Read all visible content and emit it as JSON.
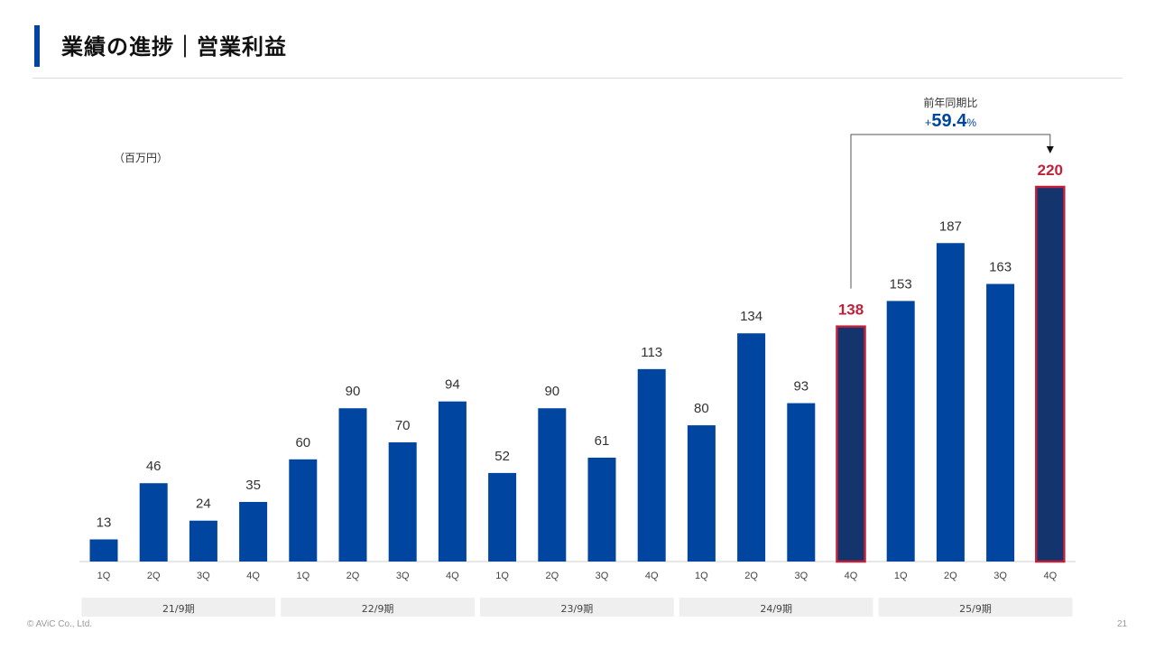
{
  "slide": {
    "title": "業績の進捗｜営業利益",
    "unit_label": "（百万円）",
    "copyright": "© AViC Co., Ltd.",
    "page_number": "21"
  },
  "colors": {
    "bar": "#0046a0",
    "highlight_bar": "#14346e",
    "highlight_border": "#c0213a",
    "highlight_label": "#c0213a",
    "accent_title": "#0046a0",
    "period_band": "#efefef"
  },
  "annotation": {
    "label": "前年同期比",
    "sign": "+",
    "value": "59.4",
    "suffix": "%",
    "from_index": 15,
    "to_index": 19
  },
  "chart_data": {
    "type": "bar",
    "categories": [
      "1Q",
      "2Q",
      "3Q",
      "4Q",
      "1Q",
      "2Q",
      "3Q",
      "4Q",
      "1Q",
      "2Q",
      "3Q",
      "4Q",
      "1Q",
      "2Q",
      "3Q",
      "4Q",
      "1Q",
      "2Q",
      "3Q",
      "4Q"
    ],
    "periods": [
      "21/9期",
      "22/9期",
      "23/9期",
      "24/9期",
      "25/9期"
    ],
    "values": [
      13,
      46,
      24,
      35,
      60,
      90,
      70,
      94,
      52,
      90,
      61,
      113,
      80,
      134,
      93,
      138,
      153,
      187,
      163,
      220
    ],
    "highlighted_indices": [
      15,
      19
    ],
    "ylim": [
      0,
      220
    ],
    "grid": false,
    "legend": "none"
  }
}
